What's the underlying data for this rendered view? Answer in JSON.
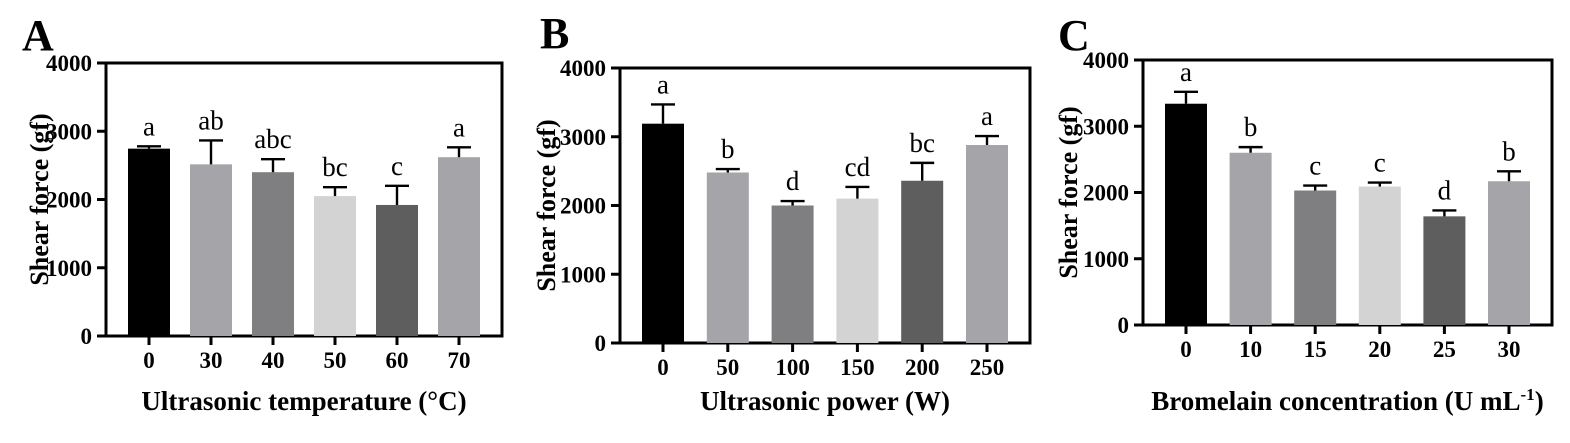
{
  "figure": {
    "background": "#ffffff",
    "axis_color": "#000000",
    "text_color": "#000000"
  },
  "chart_data": [
    {
      "panel": "A",
      "type": "bar",
      "title": "",
      "ylabel": "Shear force (gf)",
      "xlabel_segments": [
        {
          "text": "Ultrasonic temperature (°C)",
          "sup": false
        }
      ],
      "ylim": [
        0,
        4000
      ],
      "yticks": [
        "0",
        "1000",
        "2000",
        "3000",
        "4000"
      ],
      "grid": false,
      "legend": "none",
      "categories": [
        "0",
        "30",
        "40",
        "50",
        "60",
        "70"
      ],
      "values": [
        2745,
        2515,
        2400,
        2050,
        1920,
        2620
      ],
      "errors": [
        35,
        350,
        190,
        130,
        280,
        145
      ],
      "sig_letters": [
        "a",
        "ab",
        "abc",
        "bc",
        "c",
        "a"
      ],
      "bar_colors": [
        "#000000",
        "#a5a5a9",
        "#7f7f82",
        "#d3d3d3",
        "#5e5e5e",
        "#a5a5a9"
      ]
    },
    {
      "panel": "B",
      "type": "bar",
      "title": "",
      "ylabel": "Shear force (gf)",
      "xlabel_segments": [
        {
          "text": "Ultrasonic power (W)",
          "sup": false
        }
      ],
      "ylim": [
        0,
        4000
      ],
      "yticks": [
        "0",
        "1000",
        "2000",
        "3000",
        "4000"
      ],
      "grid": false,
      "legend": "none",
      "categories": [
        "0",
        "50",
        "100",
        "150",
        "200",
        "250"
      ],
      "values": [
        3190,
        2480,
        2000,
        2100,
        2360,
        2880
      ],
      "errors": [
        280,
        50,
        65,
        170,
        260,
        130
      ],
      "sig_letters": [
        "a",
        "b",
        "d",
        "cd",
        "bc",
        "a"
      ],
      "bar_colors": [
        "#000000",
        "#a5a5a9",
        "#7f7f82",
        "#d3d3d3",
        "#5e5e5e",
        "#a5a5a9"
      ]
    },
    {
      "panel": "C",
      "type": "bar",
      "title": "",
      "ylabel": "Shear force (gf)",
      "xlabel_segments": [
        {
          "text": "Bromelain concentration (U mL",
          "sup": false
        },
        {
          "text": "-1",
          "sup": true
        },
        {
          "text": ")",
          "sup": false
        }
      ],
      "ylim": [
        0,
        4000
      ],
      "yticks": [
        "0",
        "1000",
        "2000",
        "3000",
        "4000"
      ],
      "grid": false,
      "legend": "none",
      "categories": [
        "0",
        "10",
        "15",
        "20",
        "25",
        "30"
      ],
      "values": [
        3340,
        2600,
        2030,
        2090,
        1640,
        2170
      ],
      "errors": [
        180,
        85,
        75,
        60,
        90,
        150
      ],
      "sig_letters": [
        "a",
        "b",
        "c",
        "c",
        "d",
        "b"
      ],
      "bar_colors": [
        "#000000",
        "#a5a5a9",
        "#7f7f82",
        "#d3d3d3",
        "#5e5e5e",
        "#a5a5a9"
      ]
    }
  ]
}
